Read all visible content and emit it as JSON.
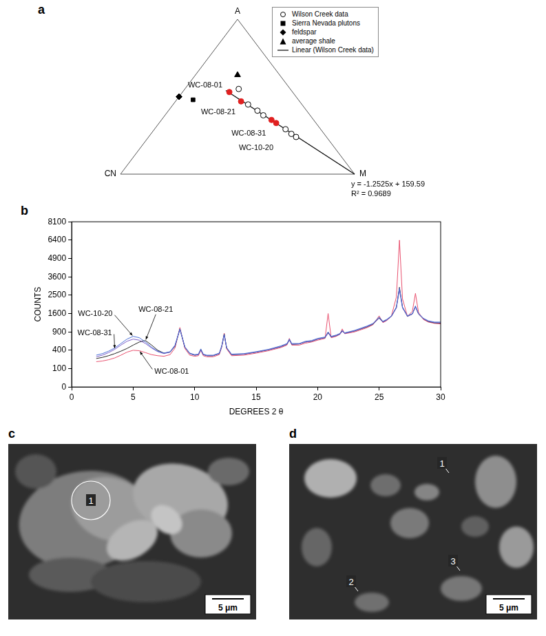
{
  "chart_data": [
    {
      "panel": "a",
      "type": "ternary",
      "vertices": {
        "top": "A",
        "left": "CN",
        "right": "M"
      },
      "tick_labels": false,
      "legend": "top-right",
      "series": [
        {
          "name": "Wilson Creek data",
          "marker": "open_circle",
          "color": "#000000",
          "points": [
            {
              "A": 55,
              "CN": 22,
              "M": 23
            },
            {
              "A": 53,
              "CN": 27,
              "M": 20
            },
            {
              "A": 47,
              "CN": 25,
              "M": 28
            },
            {
              "A": 45,
              "CN": 23,
              "M": 32
            },
            {
              "A": 41,
              "CN": 21,
              "M": 38
            },
            {
              "A": 38,
              "CN": 20,
              "M": 42
            },
            {
              "A": 35,
              "CN": 18,
              "M": 47
            },
            {
              "A": 33,
              "CN": 17,
              "M": 50
            },
            {
              "A": 29,
              "CN": 15,
              "M": 56
            },
            {
              "A": 26,
              "CN": 14,
              "M": 60
            },
            {
              "A": 24,
              "CN": 13,
              "M": 63
            }
          ],
          "colors": [
            "#000000",
            "#e02020",
            "#e02020",
            "#000000",
            "#000000",
            "#000000",
            "#e02020",
            "#e02020",
            "#000000",
            "#000000",
            "#000000"
          ]
        },
        {
          "name": "Sierra Nevada plutons",
          "marker": "square",
          "color": "#000000",
          "points": [
            {
              "A": 48,
              "CN": 45,
              "M": 7
            }
          ]
        },
        {
          "name": "feldspar",
          "marker": "diamond",
          "color": "#000000",
          "points": [
            {
              "A": 50,
              "CN": 50,
              "M": 0
            }
          ]
        },
        {
          "name": "average shale",
          "marker": "triangle",
          "color": "#000000",
          "points": [
            {
              "A": 64,
              "CN": 18,
              "M": 18
            }
          ]
        },
        {
          "name": "Linear (Wilson Creek data)",
          "type": "line",
          "line_style": "solid",
          "color": "#000000",
          "points": [
            {
              "A": 54,
              "CN": 28,
              "M": 18
            },
            {
              "A": 0,
              "CN": 0,
              "M": 100
            }
          ]
        }
      ],
      "point_labels": [
        {
          "text": "WC-08-01",
          "A": 53,
          "CN": 27,
          "M": 20
        },
        {
          "text": "WC-08-21",
          "A": 47,
          "CN": 25,
          "M": 28
        },
        {
          "text": "WC-08-31",
          "A": 35,
          "CN": 18,
          "M": 47
        },
        {
          "text": "WC-10-20",
          "A": 33,
          "CN": 17,
          "M": 50
        }
      ],
      "annotations": [
        "y = -1.2525x + 159.59",
        "R² = 0.9689"
      ]
    },
    {
      "panel": "b",
      "type": "line",
      "x_label": "DEGREES 2 θ",
      "y_label": "COUNTS",
      "xlim": [
        0,
        30
      ],
      "xticks": [
        0,
        5,
        10,
        15,
        20,
        25,
        30
      ],
      "ylim": [
        0,
        8100
      ],
      "yticks": [
        0,
        100,
        400,
        900,
        1600,
        2500,
        3600,
        4900,
        6400,
        8100
      ],
      "grid": false,
      "x": [
        2,
        2.5,
        3,
        3.5,
        4,
        4.5,
        5,
        5.5,
        6,
        6.5,
        7,
        7.5,
        8,
        8.4,
        8.8,
        9.2,
        9.6,
        10,
        10.3,
        10.5,
        10.7,
        11,
        11.5,
        12,
        12.2,
        12.4,
        12.6,
        13,
        14,
        15,
        16,
        17,
        17.5,
        17.7,
        17.9,
        18.5,
        19,
        19.5,
        20,
        20.6,
        20.85,
        21.1,
        21.5,
        21.8,
        22,
        22.2,
        23,
        24,
        24.5,
        25,
        25.3,
        25.6,
        26,
        26.4,
        26.65,
        26.9,
        27.3,
        27.7,
        27.95,
        28.2,
        28.6,
        29,
        29.5,
        30
      ],
      "series": [
        {
          "name": "WC-10-20",
          "color": "#4a6fd6",
          "values": [
            300,
            330,
            380,
            450,
            560,
            680,
            760,
            720,
            600,
            470,
            380,
            340,
            370,
            520,
            1000,
            480,
            340,
            310,
            320,
            430,
            320,
            300,
            300,
            340,
            500,
            820,
            460,
            320,
            330,
            370,
            420,
            500,
            560,
            680,
            560,
            560,
            620,
            640,
            700,
            740,
            900,
            760,
            800,
            850,
            950,
            870,
            950,
            1100,
            1200,
            1450,
            1280,
            1350,
            1500,
            1900,
            2900,
            1900,
            1500,
            1600,
            1950,
            1600,
            1400,
            1300,
            1250,
            1250
          ]
        },
        {
          "name": "WC-08-31",
          "color": "#7a5cc8",
          "values": [
            270,
            300,
            350,
            420,
            520,
            620,
            680,
            650,
            560,
            450,
            370,
            330,
            360,
            500,
            980,
            470,
            330,
            300,
            310,
            400,
            310,
            290,
            290,
            330,
            480,
            800,
            450,
            310,
            320,
            360,
            410,
            480,
            540,
            650,
            540,
            550,
            600,
            620,
            680,
            720,
            860,
            740,
            780,
            820,
            920,
            850,
            930,
            1080,
            1180,
            1400,
            1250,
            1320,
            1480,
            1850,
            2800,
            1850,
            1480,
            1580,
            1900,
            1580,
            1380,
            1280,
            1230,
            1220
          ]
        },
        {
          "name": "WC-08-21",
          "color": "#222222",
          "values": [
            240,
            260,
            290,
            330,
            380,
            440,
            520,
            600,
            640,
            520,
            400,
            340,
            360,
            490,
            1000,
            470,
            330,
            300,
            310,
            420,
            310,
            290,
            290,
            330,
            490,
            830,
            450,
            310,
            320,
            360,
            410,
            480,
            540,
            660,
            540,
            550,
            600,
            620,
            680,
            720,
            880,
            740,
            780,
            830,
            930,
            860,
            930,
            1070,
            1170,
            1420,
            1260,
            1330,
            1480,
            1880,
            2950,
            1880,
            1480,
            1580,
            1920,
            1580,
            1380,
            1270,
            1220,
            1210
          ]
        },
        {
          "name": "WC-08-01",
          "color": "#e8506e",
          "values": [
            190,
            200,
            220,
            250,
            300,
            360,
            400,
            390,
            350,
            310,
            290,
            280,
            310,
            450,
            1050,
            440,
            300,
            280,
            290,
            400,
            290,
            270,
            270,
            310,
            470,
            860,
            430,
            290,
            300,
            340,
            390,
            460,
            520,
            700,
            520,
            520,
            570,
            600,
            650,
            700,
            1600,
            720,
            760,
            820,
            1000,
            840,
            900,
            1040,
            1150,
            1500,
            1230,
            1300,
            1500,
            2400,
            6400,
            2300,
            1480,
            1700,
            2600,
            1650,
            1350,
            1250,
            1200,
            1180
          ]
        }
      ],
      "annotations": [
        {
          "text": "WC-08-21",
          "x": 6,
          "y": 640
        },
        {
          "text": "WC-10-20",
          "x": 5,
          "y": 760
        },
        {
          "text": "WC-08-31",
          "x": 3.5,
          "y": 420
        },
        {
          "text": "WC-08-01",
          "x": 5.5,
          "y": 390
        }
      ]
    }
  ],
  "images": [
    {
      "panel": "c",
      "scale_bar": "5 μm",
      "markers": [
        "1"
      ]
    },
    {
      "panel": "d",
      "scale_bar": "5 μm",
      "markers": [
        "1",
        "2",
        "3"
      ]
    }
  ]
}
